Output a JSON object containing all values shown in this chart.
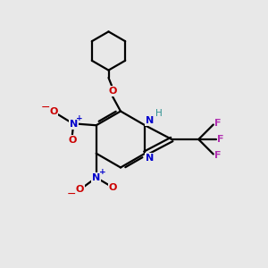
{
  "background_color": "#e8e8e8",
  "fig_size": [
    3.0,
    3.0
  ],
  "dpi": 100,
  "bond_color": "#000000",
  "bond_lw": 1.6,
  "N_color": "#0000cc",
  "O_color": "#cc0000",
  "F_color": "#b030b0",
  "H_color": "#2a9090",
  "plus_color": "#0000cc",
  "minus_color": "#cc0000",
  "xlim": [
    0,
    10
  ],
  "ylim": [
    0,
    10
  ]
}
